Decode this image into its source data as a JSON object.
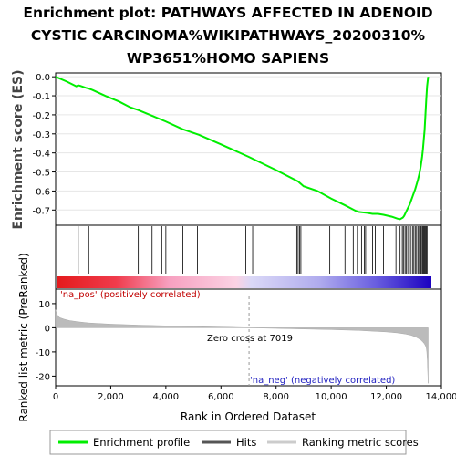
{
  "chart_data": {
    "type": "line",
    "title_lines": [
      "Enrichment plot: PATHWAYS AFFECTED IN ADENOID",
      "CYSTIC CARCINOMA%WIKIPATHWAYS_20200310%",
      "WP3651%HOMO SAPIENS"
    ],
    "es_panel": {
      "ylabel": "Enrichment score (ES)",
      "ylim": [
        -0.78,
        0.02
      ],
      "yticks": [
        0.0,
        -0.1,
        -0.2,
        -0.3,
        -0.4,
        -0.5,
        -0.6,
        -0.7
      ],
      "ytick_labels": [
        "0.0",
        "-0.1",
        "-0.2",
        "-0.3",
        "-0.4",
        "-0.5",
        "-0.6",
        "-0.7"
      ],
      "profile": {
        "name": "Enrichment profile",
        "color": "#00ee00",
        "x": [
          0,
          400,
          750,
          820,
          900,
          1100,
          1200,
          1350,
          1800,
          2300,
          2700,
          3000,
          3500,
          4000,
          4600,
          5200,
          6000,
          7000,
          8000,
          8800,
          9000,
          9500,
          10000,
          10500,
          10900,
          11000,
          11300,
          11500,
          11700,
          11900,
          12200,
          12400,
          12500,
          12600,
          12650,
          12700,
          12750,
          12800,
          12850,
          12900,
          12950,
          13000,
          13050,
          13100,
          13150,
          13200,
          13250,
          13300,
          13330,
          13360,
          13390,
          13420,
          13450,
          13480,
          13520
        ],
        "y": [
          0.0,
          -0.025,
          -0.05,
          -0.045,
          -0.048,
          -0.058,
          -0.062,
          -0.07,
          -0.1,
          -0.13,
          -0.16,
          -0.175,
          -0.205,
          -0.235,
          -0.275,
          -0.305,
          -0.355,
          -0.42,
          -0.49,
          -0.55,
          -0.575,
          -0.6,
          -0.64,
          -0.675,
          -0.705,
          -0.71,
          -0.715,
          -0.72,
          -0.72,
          -0.725,
          -0.735,
          -0.745,
          -0.748,
          -0.74,
          -0.73,
          -0.715,
          -0.7,
          -0.685,
          -0.67,
          -0.65,
          -0.63,
          -0.61,
          -0.59,
          -0.565,
          -0.54,
          -0.51,
          -0.47,
          -0.42,
          -0.38,
          -0.33,
          -0.28,
          -0.2,
          -0.12,
          -0.05,
          0.0
        ]
      }
    },
    "hits": {
      "name": "Hits",
      "positions": [
        820,
        1200,
        2700,
        3000,
        3500,
        3850,
        4000,
        4550,
        4620,
        5150,
        6900,
        7150,
        8750,
        8800,
        8850,
        8900,
        9450,
        9950,
        10500,
        10800,
        10950,
        11100,
        11200,
        11250,
        11500,
        11600,
        11900,
        12350,
        12500,
        12580,
        12620,
        12680,
        12720,
        12780,
        12830,
        12880,
        12950,
        13000,
        13050,
        13100,
        13150,
        13200,
        13230,
        13260,
        13300,
        13330,
        13360,
        13390,
        13420,
        13450,
        13480
      ]
    },
    "rank_panel": {
      "ylabel": "Ranked list metric (PreRanked)",
      "ylim": [
        -24,
        16
      ],
      "yticks": [
        10,
        0,
        -10,
        -20
      ],
      "ytick_labels": [
        "10",
        "0",
        "-10",
        "-20"
      ],
      "metric": {
        "name": "Ranking metric scores",
        "x": [
          0,
          30,
          80,
          150,
          300,
          500,
          800,
          1200,
          2000,
          3000,
          4000,
          5000,
          6000,
          7019,
          8000,
          9000,
          10000,
          11000,
          11500,
          12000,
          12400,
          12700,
          12900,
          13050,
          13150,
          13250,
          13320,
          13380,
          13420,
          13450,
          13470,
          13490,
          13500,
          13510,
          13520
        ],
        "y": [
          7.5,
          6.0,
          5.0,
          4.2,
          3.6,
          3.0,
          2.5,
          2.0,
          1.5,
          1.1,
          0.8,
          0.5,
          0.3,
          0.0,
          -0.25,
          -0.5,
          -0.75,
          -1.1,
          -1.4,
          -1.7,
          -2.1,
          -2.6,
          -3.1,
          -3.7,
          -4.3,
          -5.0,
          -5.8,
          -6.6,
          -7.4,
          -8.3,
          -10.0,
          -13.5,
          -17.0,
          -20.0,
          -23.0
        ]
      },
      "zero_cross": 7019,
      "zero_cross_label": "Zero cross at 7019",
      "pos_label": "'na_pos' (positively correlated)",
      "neg_label": "'na_neg' (negatively correlated)"
    },
    "x_axis": {
      "label": "Rank in Ordered Dataset",
      "xlim": [
        0,
        14000
      ],
      "ticks": [
        0,
        2000,
        4000,
        6000,
        8000,
        10000,
        12000,
        14000
      ],
      "tick_labels": [
        "0",
        "2,000",
        "4,000",
        "6,000",
        "8,000",
        "10,000",
        "12,000",
        "14,000"
      ],
      "n_genes": 13520
    },
    "legend": {
      "position": "bottom",
      "entries": [
        {
          "label": "Enrichment profile",
          "color": "#00ee00"
        },
        {
          "label": "Hits",
          "color": "#555555"
        },
        {
          "label": "Ranking metric scores",
          "color": "#cccccc"
        }
      ]
    }
  }
}
